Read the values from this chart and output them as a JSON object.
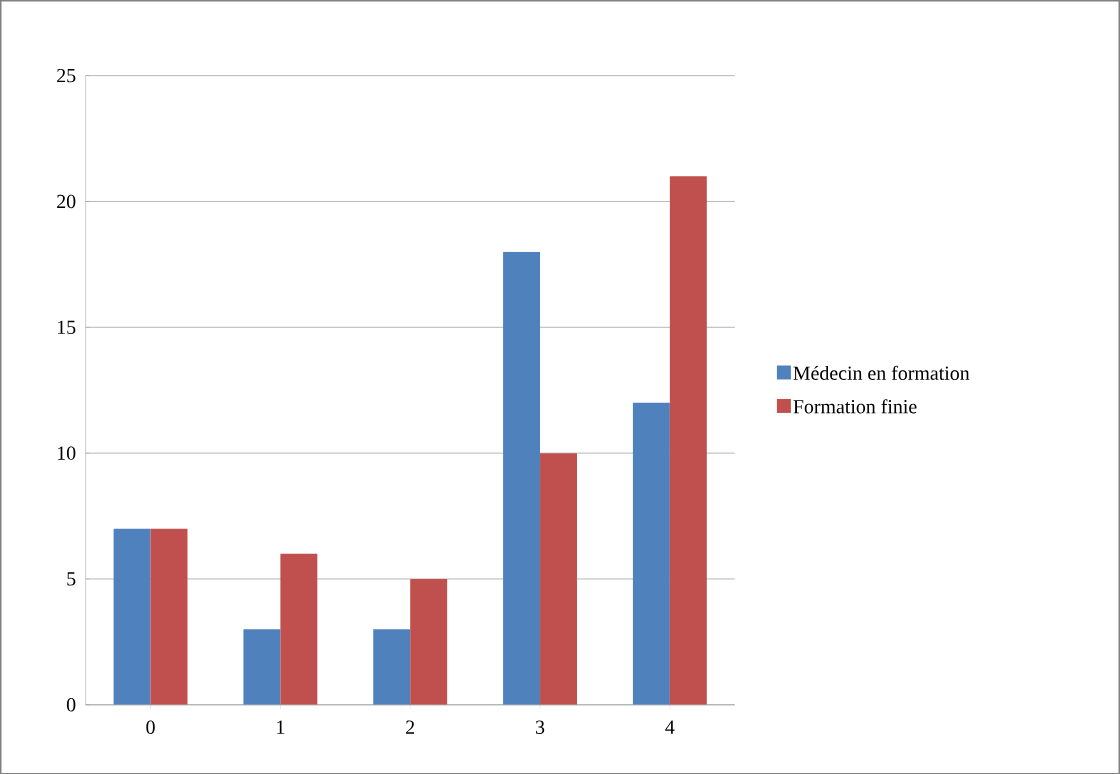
{
  "chart_data": {
    "type": "bar",
    "categories": [
      "0",
      "1",
      "2",
      "3",
      "4"
    ],
    "series": [
      {
        "name": "Médecin en formation",
        "color": "#4f81bd",
        "values": [
          7,
          3,
          3,
          18,
          12
        ]
      },
      {
        "name": "Formation finie",
        "color": "#c0504d",
        "values": [
          7,
          6,
          5,
          10,
          21
        ]
      }
    ],
    "ylim": [
      0,
      25
    ],
    "yticks": [
      0,
      5,
      10,
      15,
      20,
      25
    ],
    "grid": "y",
    "legend": "right"
  }
}
